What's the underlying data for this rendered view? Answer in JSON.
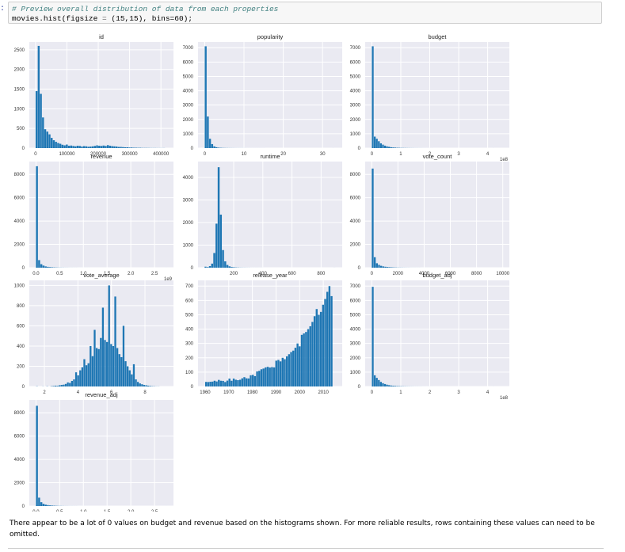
{
  "notebook": {
    "prompt": ":",
    "code_comment": "# Preview overall distribution of data from each properties",
    "code_prefix": "movies.hist(figsize ",
    "code_op": "=",
    "code_args": " (15,15), bins=60);",
    "markdown": "There appear to be a lot of 0 values on budget and revenue based on the histograms shown. For more reliable results, rows containing these values can need to be omitted."
  },
  "colors": {
    "bar": "#1f77b4",
    "plot_bg": "#eaeaf2"
  },
  "chart_data": [
    {
      "type": "bar",
      "title": "id",
      "xlim": [
        -20000,
        440000
      ],
      "ylim": [
        0,
        2700
      ],
      "xticks": [
        0,
        100000,
        200000,
        300000,
        400000
      ],
      "xtick_labels": [
        "0",
        "100000",
        "200000",
        "300000",
        "400000"
      ],
      "yticks": [
        0,
        500,
        1000,
        1500,
        2000,
        2500
      ],
      "ytick_labels": [
        "0",
        "500",
        "1000",
        "1500",
        "2000",
        "2500"
      ],
      "bin_start": 0,
      "bin_width": 6900,
      "values": [
        1450,
        2600,
        1380,
        780,
        480,
        420,
        350,
        260,
        200,
        160,
        130,
        110,
        85,
        70,
        90,
        60,
        65,
        55,
        45,
        60,
        55,
        40,
        50,
        45,
        35,
        40,
        45,
        55,
        70,
        60,
        55,
        65,
        55,
        75,
        60,
        50,
        45,
        40,
        30,
        30,
        25,
        20,
        20,
        15,
        15,
        10,
        10,
        8,
        8,
        5,
        5,
        5,
        4,
        3,
        3,
        3,
        2,
        2,
        2,
        2
      ]
    },
    {
      "type": "bar",
      "title": "popularity",
      "xlim": [
        -1.7,
        35
      ],
      "ylim": [
        0,
        7400
      ],
      "xticks": [
        0,
        10,
        20,
        30
      ],
      "xtick_labels": [
        "0",
        "10",
        "20",
        "30"
      ],
      "yticks": [
        0,
        1000,
        2000,
        3000,
        4000,
        5000,
        6000,
        7000
      ],
      "ytick_labels": [
        "0",
        "1000",
        "2000",
        "3000",
        "4000",
        "5000",
        "6000",
        "7000"
      ],
      "bin_start": 0,
      "bin_width": 0.55,
      "values": [
        7100,
        2200,
        650,
        280,
        120,
        60,
        30,
        20,
        15,
        10,
        8,
        6,
        5,
        4,
        3,
        3,
        2,
        2,
        2,
        1,
        1,
        1,
        1,
        1,
        1,
        1,
        1,
        1,
        0,
        0,
        0,
        0,
        0,
        0,
        0,
        0,
        0,
        0,
        0,
        0,
        0,
        0,
        0,
        0,
        0,
        0,
        0,
        0,
        0,
        0,
        0,
        0,
        0,
        0,
        0,
        0,
        0,
        0,
        0,
        1
      ]
    },
    {
      "type": "bar",
      "title": "budget",
      "xlim": [
        -0.23,
        4.75
      ],
      "ylim": [
        0,
        7400
      ],
      "xticks": [
        0,
        1,
        2,
        3,
        4
      ],
      "xtick_labels": [
        "0",
        "1",
        "2",
        "3",
        "4"
      ],
      "yticks": [
        0,
        1000,
        2000,
        3000,
        4000,
        5000,
        6000,
        7000
      ],
      "ytick_labels": [
        "0",
        "1000",
        "2000",
        "3000",
        "4000",
        "5000",
        "6000",
        "7000"
      ],
      "offset_label": "1e8",
      "bin_start": 0,
      "bin_width": 0.0706,
      "values": [
        7100,
        800,
        650,
        480,
        330,
        240,
        170,
        120,
        90,
        60,
        45,
        35,
        25,
        20,
        15,
        12,
        10,
        8,
        6,
        5,
        4,
        3,
        3,
        2,
        2,
        1,
        1,
        1,
        1,
        1,
        0,
        0,
        0,
        0,
        0,
        0,
        0,
        0,
        0,
        0,
        0,
        0,
        0,
        0,
        0,
        0,
        0,
        0,
        0,
        0,
        0,
        0,
        0,
        0,
        0,
        0,
        0,
        0,
        0,
        1
      ]
    },
    {
      "type": "bar",
      "title": "revenue",
      "xlim": [
        -0.14,
        2.9
      ],
      "ylim": [
        0,
        9100
      ],
      "xticks": [
        0,
        0.5,
        1.0,
        1.5,
        2.0,
        2.5
      ],
      "xtick_labels": [
        "0.0",
        "0.5",
        "1.0",
        "1.5",
        "2.0",
        "2.5"
      ],
      "yticks": [
        0,
        2000,
        4000,
        6000,
        8000
      ],
      "ytick_labels": [
        "0",
        "2000",
        "4000",
        "6000",
        "8000"
      ],
      "offset_label": "1e9",
      "bin_start": 0,
      "bin_width": 0.0463,
      "values": [
        8700,
        650,
        300,
        180,
        110,
        75,
        50,
        35,
        25,
        18,
        12,
        9,
        7,
        5,
        4,
        3,
        3,
        2,
        2,
        1,
        1,
        1,
        1,
        1,
        1,
        0,
        0,
        0,
        0,
        0,
        0,
        0,
        0,
        0,
        0,
        0,
        0,
        0,
        0,
        0,
        0,
        0,
        0,
        0,
        0,
        0,
        0,
        0,
        0,
        0,
        0,
        0,
        0,
        0,
        0,
        0,
        0,
        0,
        0,
        1
      ]
    },
    {
      "type": "bar",
      "title": "runtime",
      "xlim": [
        -45,
        945
      ],
      "ylim": [
        0,
        4700
      ],
      "xticks": [
        200,
        400,
        600,
        800
      ],
      "xtick_labels": [
        "200",
        "400",
        "600",
        "800"
      ],
      "yticks": [
        0,
        1000,
        2000,
        3000,
        4000
      ],
      "ytick_labels": [
        "0",
        "1000",
        "2000",
        "3000",
        "4000"
      ],
      "bin_start": 0,
      "bin_width": 15,
      "values": [
        45,
        25,
        70,
        180,
        650,
        1950,
        4450,
        2350,
        780,
        280,
        120,
        60,
        30,
        20,
        12,
        8,
        5,
        4,
        3,
        2,
        2,
        1,
        1,
        1,
        1,
        1,
        1,
        0,
        0,
        0,
        0,
        0,
        0,
        0,
        0,
        0,
        0,
        0,
        0,
        0,
        0,
        0,
        0,
        0,
        0,
        0,
        0,
        0,
        0,
        0,
        0,
        0,
        0,
        0,
        0,
        0,
        0,
        0,
        0,
        1
      ]
    },
    {
      "type": "bar",
      "title": "vote_count",
      "xlim": [
        -500,
        10500
      ],
      "ylim": [
        0,
        9100
      ],
      "xticks": [
        0,
        2000,
        4000,
        6000,
        8000,
        10000
      ],
      "xtick_labels": [
        "0",
        "2000",
        "4000",
        "6000",
        "8000",
        "10000"
      ],
      "yticks": [
        0,
        2000,
        4000,
        6000,
        8000
      ],
      "ytick_labels": [
        "0",
        "2000",
        "4000",
        "6000",
        "8000"
      ],
      "bin_start": 0,
      "bin_width": 162,
      "values": [
        8500,
        900,
        380,
        240,
        160,
        110,
        80,
        60,
        45,
        35,
        25,
        18,
        13,
        10,
        8,
        6,
        5,
        4,
        3,
        3,
        2,
        2,
        2,
        1,
        1,
        1,
        1,
        1,
        1,
        1,
        0,
        0,
        0,
        0,
        0,
        0,
        0,
        0,
        0,
        0,
        0,
        0,
        0,
        0,
        0,
        0,
        0,
        0,
        0,
        0,
        0,
        0,
        0,
        0,
        0,
        0,
        0,
        0,
        0,
        1
      ]
    },
    {
      "type": "bar",
      "title": "vote_average",
      "xlim": [
        1.1,
        9.7
      ],
      "ylim": [
        0,
        1050
      ],
      "xticks": [
        2,
        4,
        6,
        8
      ],
      "xtick_labels": [
        "2",
        "4",
        "6",
        "8"
      ],
      "yticks": [
        0,
        200,
        400,
        600,
        800,
        1000
      ],
      "ytick_labels": [
        "0",
        "200",
        "400",
        "600",
        "800",
        "1000"
      ],
      "bin_start": 1.5,
      "bin_width": 0.123,
      "values": [
        2,
        0,
        0,
        1,
        0,
        2,
        0,
        3,
        5,
        8,
        6,
        12,
        15,
        18,
        25,
        40,
        35,
        55,
        70,
        140,
        110,
        160,
        190,
        270,
        210,
        230,
        400,
        300,
        560,
        380,
        370,
        480,
        780,
        460,
        440,
        1000,
        420,
        400,
        890,
        380,
        320,
        290,
        600,
        250,
        200,
        160,
        120,
        220,
        70,
        45,
        30,
        22,
        15,
        12,
        8,
        5,
        3,
        2,
        1,
        1
      ]
    },
    {
      "type": "bar",
      "title": "release_year",
      "xlim": [
        1957,
        2018
      ],
      "ylim": [
        0,
        740
      ],
      "xticks": [
        1960,
        1970,
        1980,
        1990,
        2000,
        2010
      ],
      "xtick_labels": [
        "1960",
        "1970",
        "1980",
        "1990",
        "2000",
        "2010"
      ],
      "yticks": [
        0,
        100,
        200,
        300,
        400,
        500,
        600,
        700
      ],
      "ytick_labels": [
        "0",
        "100",
        "200",
        "300",
        "400",
        "500",
        "600",
        "700"
      ],
      "bin_start": 1960,
      "bin_width": 0.9,
      "values": [
        32,
        31,
        33,
        34,
        40,
        35,
        46,
        40,
        39,
        31,
        41,
        55,
        40,
        55,
        47,
        44,
        47,
        57,
        65,
        57,
        56,
        78,
        81,
        72,
        105,
        109,
        120,
        125,
        133,
        137,
        132,
        135,
        133,
        180,
        185,
        175,
        200,
        190,
        210,
        225,
        240,
        250,
        270,
        300,
        280,
        360,
        370,
        380,
        400,
        420,
        450,
        490,
        540,
        500,
        520,
        570,
        610,
        660,
        700,
        630
      ]
    },
    {
      "type": "bar",
      "title": "budget_adj",
      "xlim": [
        -0.23,
        4.75
      ],
      "ylim": [
        0,
        7400
      ],
      "xticks": [
        0,
        1,
        2,
        3,
        4
      ],
      "xtick_labels": [
        "0",
        "1",
        "2",
        "3",
        "4"
      ],
      "yticks": [
        0,
        1000,
        2000,
        3000,
        4000,
        5000,
        6000,
        7000
      ],
      "ytick_labels": [
        "0",
        "1000",
        "2000",
        "3000",
        "4000",
        "5000",
        "6000",
        "7000"
      ],
      "offset_label": "1e8",
      "bin_start": 0,
      "bin_width": 0.0706,
      "values": [
        6950,
        780,
        600,
        450,
        320,
        230,
        170,
        125,
        90,
        65,
        50,
        38,
        28,
        22,
        17,
        13,
        10,
        8,
        6,
        5,
        4,
        3,
        3,
        2,
        2,
        1,
        1,
        1,
        1,
        1,
        0,
        0,
        0,
        0,
        0,
        0,
        0,
        0,
        0,
        0,
        0,
        0,
        0,
        0,
        0,
        0,
        0,
        0,
        0,
        0,
        0,
        0,
        0,
        0,
        0,
        0,
        0,
        0,
        0,
        1
      ]
    },
    {
      "type": "bar",
      "title": "revenue_adj",
      "xlim": [
        -0.14,
        2.9
      ],
      "ylim": [
        0,
        9100
      ],
      "xticks": [
        0,
        0.5,
        1.0,
        1.5,
        2.0,
        2.5
      ],
      "xtick_labels": [
        "0.0",
        "0.5",
        "1.0",
        "1.5",
        "2.0",
        "2.5"
      ],
      "yticks": [
        0,
        2000,
        4000,
        6000,
        8000
      ],
      "ytick_labels": [
        "0",
        "2000",
        "4000",
        "6000",
        "8000"
      ],
      "offset_label": "1e9",
      "bin_start": 0,
      "bin_width": 0.0463,
      "values": [
        8600,
        720,
        330,
        190,
        120,
        80,
        55,
        38,
        27,
        19,
        13,
        10,
        7,
        5,
        4,
        3,
        3,
        2,
        2,
        1,
        1,
        1,
        1,
        1,
        1,
        0,
        0,
        0,
        0,
        0,
        0,
        0,
        0,
        0,
        0,
        0,
        0,
        0,
        0,
        0,
        0,
        0,
        0,
        0,
        0,
        0,
        0,
        0,
        0,
        0,
        0,
        0,
        0,
        0,
        0,
        0,
        0,
        0,
        0,
        1
      ]
    }
  ]
}
